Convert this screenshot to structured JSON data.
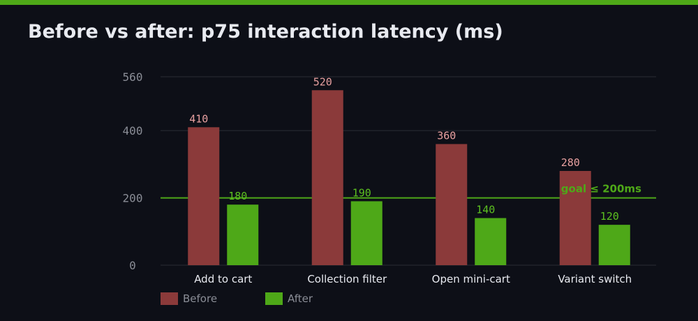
{
  "title": "Before vs after: p75 interaction latency (ms)",
  "colors": {
    "before": "#8b3a3a",
    "after": "#4ea818",
    "before_label": "#e8a0a0",
    "after_label": "#5cc020",
    "goal": "#4ea818"
  },
  "chart_data": {
    "type": "bar",
    "title": "Before vs after: p75 interaction latency (ms)",
    "categories": [
      "Add to cart",
      "Collection filter",
      "Open mini-cart",
      "Variant switch"
    ],
    "series": [
      {
        "name": "Before",
        "values": [
          410,
          520,
          360,
          280
        ]
      },
      {
        "name": "After",
        "values": [
          180,
          190,
          140,
          120
        ]
      }
    ],
    "yticks": [
      0,
      200,
      400,
      560
    ],
    "ylim": [
      0,
      560
    ],
    "grid": true,
    "reference_line": {
      "value": 200,
      "label": "goal ≤ 200ms"
    },
    "legend": "bottom-left"
  }
}
